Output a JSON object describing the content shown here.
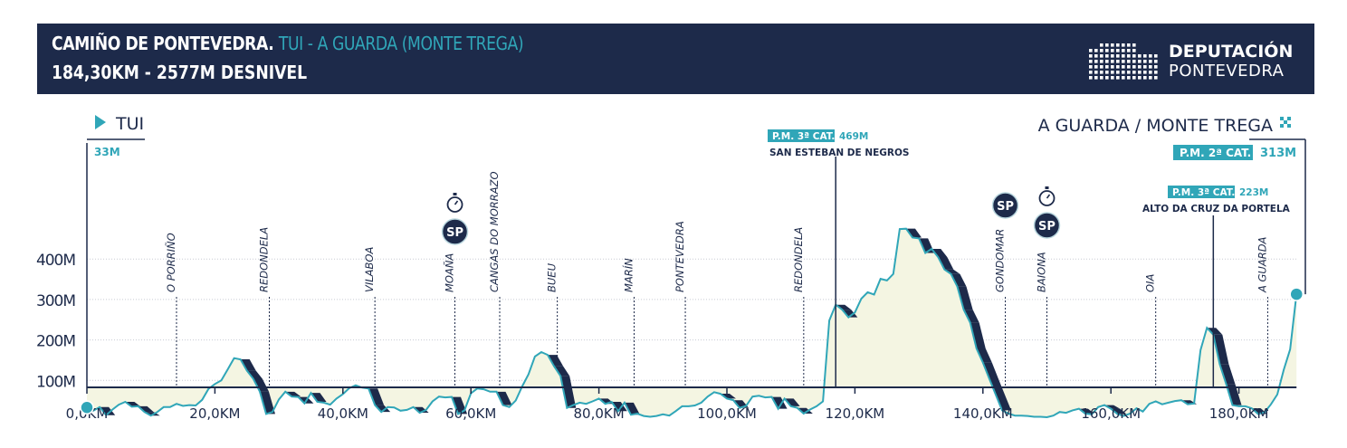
{
  "header": {
    "title_main": "CAMIÑO DE PONTEVEDRA.",
    "title_route": "TUI - A GUARDA (MONTE TREGA)",
    "subtitle": "184,30KM - 2577M DESNIVEL",
    "logo_line1": "DEPUTACIÓN",
    "logo_line2": "PONTEVEDRA"
  },
  "colors": {
    "navy": "#1d2a4a",
    "teal": "#30a6b8",
    "fill": "#f4f5e2",
    "white": "#ffffff"
  },
  "chart_data": {
    "type": "area",
    "title": "CAMIÑO DE PONTEVEDRA. TUI - A GUARDA (MONTE TREGA)",
    "xlabel": "",
    "ylabel": "",
    "xlim": [
      0,
      189
    ],
    "ylim": [
      -50,
      470
    ],
    "x_ticks": [
      {
        "value": 0,
        "label": "0,0KM"
      },
      {
        "value": 20,
        "label": "20,0KM"
      },
      {
        "value": 40,
        "label": "40,0KM"
      },
      {
        "value": 60,
        "label": "60,0KM"
      },
      {
        "value": 80,
        "label": "80,0KM"
      },
      {
        "value": 100,
        "label": "100,0KM"
      },
      {
        "value": 120,
        "label": "120,0KM"
      },
      {
        "value": 140,
        "label": "140,0KM"
      },
      {
        "value": 160,
        "label": "160,0KM"
      },
      {
        "value": 180,
        "label": "180,0KM"
      }
    ],
    "y_ticks": [
      {
        "value": 100,
        "label": "100M"
      },
      {
        "value": 200,
        "label": "200M"
      },
      {
        "value": 300,
        "label": "300M"
      },
      {
        "value": 400,
        "label": "400M"
      }
    ],
    "profile": [
      [
        0,
        33
      ],
      [
        1,
        25
      ],
      [
        2,
        34
      ],
      [
        3,
        14
      ],
      [
        4,
        28
      ],
      [
        5,
        40
      ],
      [
        6,
        47
      ],
      [
        7,
        35
      ],
      [
        8,
        36
      ],
      [
        9,
        22
      ],
      [
        10,
        13
      ],
      [
        11,
        22
      ],
      [
        12,
        34
      ],
      [
        13,
        34
      ],
      [
        14,
        42
      ],
      [
        15,
        37
      ],
      [
        16,
        39
      ],
      [
        17,
        38
      ],
      [
        18,
        52
      ],
      [
        19,
        79
      ],
      [
        20,
        91
      ],
      [
        21,
        100
      ],
      [
        22,
        127
      ],
      [
        23,
        155
      ],
      [
        24,
        152
      ],
      [
        25,
        124
      ],
      [
        26,
        104
      ],
      [
        27,
        73
      ],
      [
        28,
        17
      ],
      [
        29,
        22
      ],
      [
        30,
        53
      ],
      [
        31,
        72
      ],
      [
        32,
        60
      ],
      [
        33,
        59
      ],
      [
        34,
        43
      ],
      [
        35,
        69
      ],
      [
        36,
        47
      ],
      [
        37,
        45
      ],
      [
        38,
        40
      ],
      [
        39,
        55
      ],
      [
        40,
        66
      ],
      [
        41,
        81
      ],
      [
        42,
        88
      ],
      [
        43,
        82
      ],
      [
        44,
        80
      ],
      [
        45,
        39
      ],
      [
        46,
        22
      ],
      [
        47,
        34
      ],
      [
        48,
        33
      ],
      [
        49,
        25
      ],
      [
        50,
        27
      ],
      [
        51,
        34
      ],
      [
        52,
        20
      ],
      [
        53,
        27
      ],
      [
        54,
        48
      ],
      [
        55,
        60
      ],
      [
        56,
        58
      ],
      [
        57,
        59
      ],
      [
        58,
        17
      ],
      [
        59,
        26
      ],
      [
        60,
        68
      ],
      [
        61,
        80
      ],
      [
        62,
        78
      ],
      [
        63,
        72
      ],
      [
        64,
        72
      ],
      [
        65,
        39
      ],
      [
        66,
        34
      ],
      [
        67,
        50
      ],
      [
        68,
        85
      ],
      [
        69,
        115
      ],
      [
        70,
        159
      ],
      [
        71,
        170
      ],
      [
        72,
        163
      ],
      [
        73,
        135
      ],
      [
        74,
        111
      ],
      [
        75,
        32
      ],
      [
        76,
        39
      ],
      [
        77,
        45
      ],
      [
        78,
        42
      ],
      [
        79,
        48
      ],
      [
        80,
        55
      ],
      [
        81,
        42
      ],
      [
        82,
        47
      ],
      [
        83,
        24
      ],
      [
        84,
        45
      ],
      [
        85,
        15
      ],
      [
        86,
        18
      ],
      [
        87,
        12
      ],
      [
        88,
        10
      ],
      [
        89,
        12
      ],
      [
        90,
        16
      ],
      [
        91,
        13
      ],
      [
        92,
        24
      ],
      [
        93,
        36
      ],
      [
        94,
        36
      ],
      [
        95,
        38
      ],
      [
        96,
        45
      ],
      [
        97,
        60
      ],
      [
        98,
        71
      ],
      [
        99,
        67
      ],
      [
        100,
        55
      ],
      [
        101,
        51
      ],
      [
        102,
        32
      ],
      [
        103,
        37
      ],
      [
        104,
        60
      ],
      [
        105,
        62
      ],
      [
        106,
        58
      ],
      [
        107,
        59
      ],
      [
        108,
        30
      ],
      [
        109,
        55
      ],
      [
        110,
        36
      ],
      [
        111,
        32
      ],
      [
        112,
        18
      ],
      [
        113,
        28
      ],
      [
        114,
        36
      ],
      [
        115,
        48
      ],
      [
        116,
        248
      ],
      [
        117,
        287
      ],
      [
        118,
        275
      ],
      [
        119,
        256
      ],
      [
        120,
        268
      ],
      [
        121,
        302
      ],
      [
        122,
        318
      ],
      [
        123,
        312
      ],
      [
        124,
        351
      ],
      [
        125,
        347
      ],
      [
        126,
        363
      ],
      [
        127,
        474
      ],
      [
        128,
        475
      ],
      [
        129,
        453
      ],
      [
        130,
        451
      ],
      [
        131,
        415
      ],
      [
        132,
        425
      ],
      [
        133,
        405
      ],
      [
        134,
        374
      ],
      [
        135,
        363
      ],
      [
        136,
        332
      ],
      [
        137,
        275
      ],
      [
        138,
        243
      ],
      [
        139,
        179
      ],
      [
        140,
        144
      ],
      [
        141,
        104
      ],
      [
        142,
        65
      ],
      [
        143,
        26
      ],
      [
        144,
        18
      ],
      [
        145,
        13
      ],
      [
        146,
        13
      ],
      [
        147,
        12
      ],
      [
        148,
        10
      ],
      [
        149,
        10
      ],
      [
        150,
        9
      ],
      [
        151,
        13
      ],
      [
        152,
        22
      ],
      [
        153,
        20
      ],
      [
        154,
        26
      ],
      [
        155,
        30
      ],
      [
        156,
        18
      ],
      [
        157,
        16
      ],
      [
        158,
        34
      ],
      [
        159,
        39
      ],
      [
        160,
        30
      ],
      [
        161,
        17
      ],
      [
        162,
        12
      ],
      [
        163,
        18
      ],
      [
        164,
        31
      ],
      [
        165,
        23
      ],
      [
        166,
        42
      ],
      [
        167,
        48
      ],
      [
        168,
        41
      ],
      [
        169,
        45
      ],
      [
        170,
        49
      ],
      [
        171,
        51
      ],
      [
        172,
        41
      ],
      [
        173,
        43
      ],
      [
        174,
        175
      ],
      [
        175,
        230
      ],
      [
        176,
        213
      ],
      [
        177,
        140
      ],
      [
        178,
        91
      ],
      [
        179,
        39
      ],
      [
        180,
        36
      ],
      [
        181,
        36
      ],
      [
        182,
        31
      ],
      [
        183,
        17
      ],
      [
        184,
        21
      ],
      [
        185,
        41
      ],
      [
        186,
        65
      ],
      [
        187,
        126
      ],
      [
        188,
        177
      ],
      [
        189,
        313
      ]
    ],
    "towns": [
      {
        "km": 14,
        "label": "O PORRIÑO",
        "top": 200
      },
      {
        "km": 28.5,
        "label": "REDONDELA",
        "top": 200
      },
      {
        "km": 45,
        "label": "VILABOA",
        "top": 200
      },
      {
        "km": 57.5,
        "label": "MOAÑA",
        "top": 200
      },
      {
        "km": 64.5,
        "label": "CANGAS DO MORRAZO",
        "top": 200
      },
      {
        "km": 73.5,
        "label": "BUEU",
        "top": 200
      },
      {
        "km": 85.5,
        "label": "MARÍN",
        "top": 200
      },
      {
        "km": 93.5,
        "label": "PONTEVEDRA",
        "top": 200
      },
      {
        "km": 112,
        "label": "REDONDELA",
        "top": 200
      },
      {
        "km": 143.5,
        "label": "GONDOMAR",
        "top": 200
      },
      {
        "km": 150,
        "label": "BAIONA",
        "top": 200
      },
      {
        "km": 167,
        "label": "OIA",
        "top": 200
      },
      {
        "km": 184.5,
        "label": "A GUARDA",
        "top": 200
      }
    ],
    "start_label": "TUI",
    "start_altitude": "33M",
    "end_label": "A GUARDA / MONTE TREGA",
    "end_altitude": "313M",
    "end_climb_label": "P.M. 2ª CAT.",
    "climbs": [
      {
        "km": 117,
        "category": "P.M. 3ª CAT.",
        "altitude": "469M",
        "name": "SAN ESTEBAN DE NEGROS"
      },
      {
        "km": 176,
        "category": "P.M. 3ª CAT.",
        "altitude": "223M",
        "name": "ALTO DA CRUZ DA PORTELA"
      }
    ],
    "sprints": [
      {
        "km": 57.5,
        "label": "SP",
        "timed": true
      },
      {
        "km": 143.5,
        "label": "SP",
        "timed": false
      },
      {
        "km": 150,
        "label": "SP",
        "timed": true
      }
    ]
  }
}
